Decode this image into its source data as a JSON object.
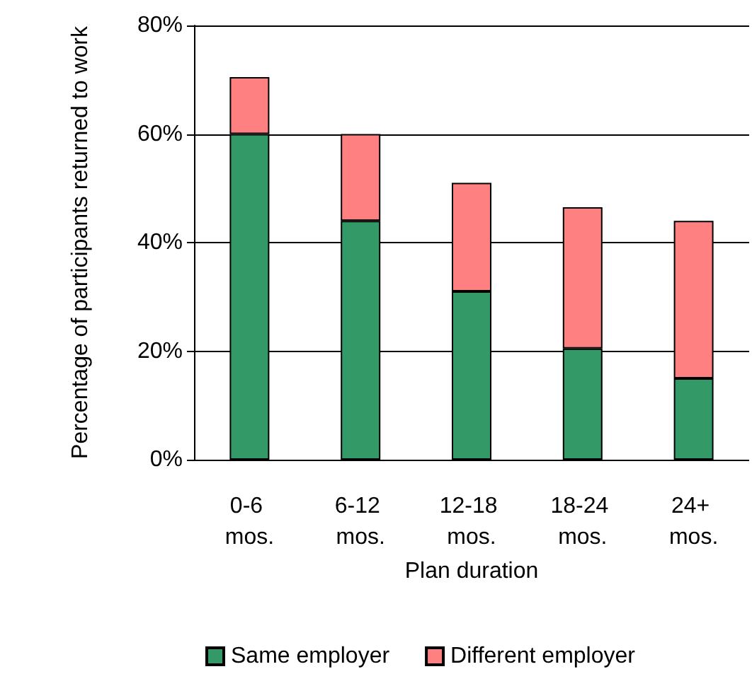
{
  "chart_data": {
    "type": "bar",
    "stacked": true,
    "xlabel": "Plan duration",
    "ylabel": "Percentage of participants returned to work",
    "categories": [
      "0-6 mos.",
      "6-12 mos.",
      "12-18 mos.",
      "18-24 mos.",
      "24+ mos."
    ],
    "series": [
      {
        "name": "Same employer",
        "color": "#339966",
        "values": [
          60,
          44,
          31,
          20.5,
          15
        ]
      },
      {
        "name": "Different employer",
        "color": "#ff8080",
        "values": [
          10.5,
          16,
          20,
          26,
          29
        ]
      }
    ],
    "ylim": [
      0,
      80
    ],
    "yticks": [
      {
        "value": 0,
        "label": "0%"
      },
      {
        "value": 20,
        "label": "20%"
      },
      {
        "value": 40,
        "label": "40%"
      },
      {
        "value": 60,
        "label": "60%"
      },
      {
        "value": 80,
        "label": "80%"
      }
    ],
    "grid": "y",
    "legend": "bottom"
  }
}
